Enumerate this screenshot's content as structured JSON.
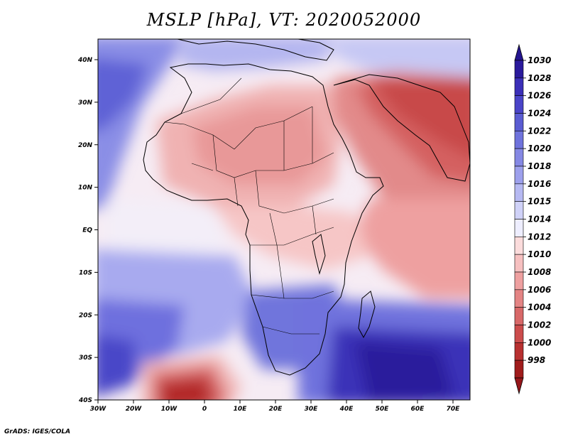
{
  "title": "MSLP [hPa], VT: 2020052000",
  "credit": "GrADS: IGES/COLA",
  "lat_ticks": [
    "40N",
    "30N",
    "20N",
    "10N",
    "EQ",
    "10S",
    "20S",
    "30S",
    "40S"
  ],
  "lon_ticks": [
    "30W",
    "20W",
    "10W",
    "0",
    "10E",
    "20E",
    "30E",
    "40E",
    "50E",
    "60E",
    "70E"
  ],
  "colorbar": {
    "levels": [
      "1030",
      "1028",
      "1026",
      "1024",
      "1022",
      "1020",
      "1018",
      "1016",
      "1015",
      "1014",
      "1012",
      "1010",
      "1008",
      "1006",
      "1004",
      "1002",
      "1000",
      "998"
    ],
    "colors": [
      "#2a1a9c",
      "#3b2fb8",
      "#4a44c8",
      "#5a5cd2",
      "#6e72dc",
      "#8588e4",
      "#9da0ec",
      "#b6b9f2",
      "#d0d2f8",
      "#eeeeff",
      "#fbdcdc",
      "#f6c0c0",
      "#eea0a0",
      "#e48484",
      "#d86868",
      "#cc4c4c",
      "#b83030",
      "#a01c1c"
    ],
    "arrow_top_color": "#24148f",
    "arrow_bottom_color": "#96161a"
  }
}
